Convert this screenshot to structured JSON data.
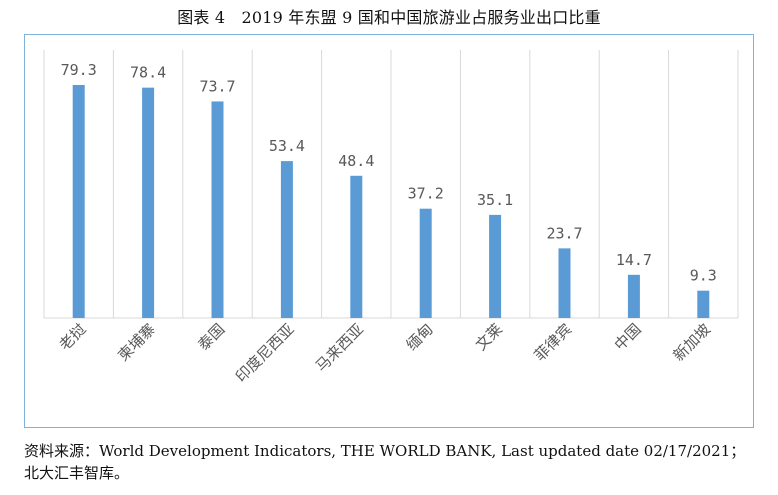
{
  "title": "图表 4　2019 年东盟 9 国和中国旅游业占服务业出口比重",
  "source_line1": "资料来源：World Development Indicators, THE WORLD BANK, Last updated date 02/17/2021；",
  "source_line2": "北大汇丰智库。",
  "colors": {
    "bar": "#5b9bd5",
    "frame": "#7fb2da",
    "grid": "#d9d9d9",
    "text": "#595959"
  },
  "chart_data": {
    "type": "bar",
    "categories": [
      "老挝",
      "柬埔寨",
      "泰国",
      "印度尼西亚",
      "马来西亚",
      "缅甸",
      "文莱",
      "菲律宾",
      "中国",
      "新加坡"
    ],
    "values": [
      79.3,
      78.4,
      73.7,
      53.4,
      48.4,
      37.2,
      35.1,
      23.7,
      14.7,
      9.3
    ],
    "data_labels": [
      "79.3",
      "78.4",
      "73.7",
      "53.4",
      "48.4",
      "37.2",
      "35.1",
      "23.7",
      "14.7",
      "9.3"
    ],
    "ylim": [
      0,
      79.3
    ],
    "grid": "vertical separators between categories",
    "legend": "none"
  }
}
